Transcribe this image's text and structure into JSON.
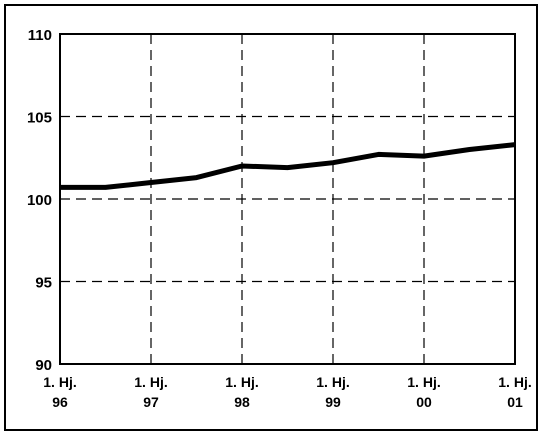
{
  "chart_data": {
    "type": "line",
    "title": "",
    "xlabel": "",
    "ylabel": "",
    "ylim": [
      90,
      110
    ],
    "yticks": [
      90,
      95,
      100,
      105,
      110
    ],
    "xticks": [
      {
        "x": 0,
        "line1": "1. Hj.",
        "line2": "96"
      },
      {
        "x": 1,
        "line1": "1. Hj.",
        "line2": "97"
      },
      {
        "x": 2,
        "line1": "1. Hj.",
        "line2": "98"
      },
      {
        "x": 3,
        "line1": "1. Hj.",
        "line2": "99"
      },
      {
        "x": 4,
        "line1": "1. Hj.",
        "line2": "00"
      },
      {
        "x": 5,
        "line1": "1. Hj.",
        "line2": "01"
      }
    ],
    "xlim": [
      0,
      5
    ],
    "grid": true,
    "legend": "none",
    "series": [
      {
        "x": [
          0,
          0.25,
          0.5,
          1,
          1.5,
          2,
          2.5,
          3,
          3.5,
          4,
          4.5,
          5
        ],
        "values": [
          100.7,
          100.7,
          100.7,
          101.0,
          101.3,
          102.0,
          101.9,
          102.2,
          102.7,
          102.6,
          103.0,
          103.3
        ],
        "color": "#000000"
      }
    ]
  }
}
